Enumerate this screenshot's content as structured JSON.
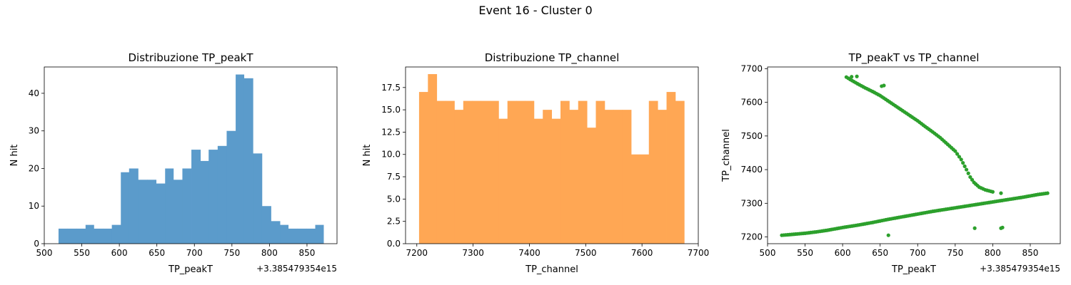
{
  "figure": {
    "suptitle": "Event 16 - Cluster 0"
  },
  "chart_data": [
    {
      "type": "bar",
      "title": "Distribuzione TP_peakT",
      "xlabel": "TP_peakT",
      "ylabel": "N hit",
      "offset_text": "+3.385479354e15",
      "color": "#5b9bcb",
      "xlim": [
        500,
        890
      ],
      "ylim": [
        0,
        47
      ],
      "xticks": [
        500,
        550,
        600,
        650,
        700,
        750,
        800,
        850
      ],
      "yticks": [
        0,
        10,
        20,
        30,
        40
      ],
      "bins": [
        {
          "x0": 519,
          "x1": 531,
          "y": 4
        },
        {
          "x0": 531,
          "x1": 543,
          "y": 4
        },
        {
          "x0": 543,
          "x1": 555,
          "y": 4
        },
        {
          "x0": 555,
          "x1": 566,
          "y": 5
        },
        {
          "x0": 566,
          "x1": 578,
          "y": 4
        },
        {
          "x0": 578,
          "x1": 590,
          "y": 4
        },
        {
          "x0": 590,
          "x1": 602,
          "y": 5
        },
        {
          "x0": 602,
          "x1": 613,
          "y": 19
        },
        {
          "x0": 613,
          "x1": 625,
          "y": 20
        },
        {
          "x0": 625,
          "x1": 637,
          "y": 17
        },
        {
          "x0": 637,
          "x1": 649,
          "y": 17
        },
        {
          "x0": 649,
          "x1": 661,
          "y": 16
        },
        {
          "x0": 661,
          "x1": 672,
          "y": 20
        },
        {
          "x0": 672,
          "x1": 684,
          "y": 17
        },
        {
          "x0": 684,
          "x1": 696,
          "y": 20
        },
        {
          "x0": 696,
          "x1": 708,
          "y": 25
        },
        {
          "x0": 708,
          "x1": 719,
          "y": 22
        },
        {
          "x0": 719,
          "x1": 731,
          "y": 25
        },
        {
          "x0": 731,
          "x1": 743,
          "y": 26
        },
        {
          "x0": 743,
          "x1": 755,
          "y": 30
        },
        {
          "x0": 755,
          "x1": 766,
          "y": 45
        },
        {
          "x0": 766,
          "x1": 778,
          "y": 44
        },
        {
          "x0": 778,
          "x1": 790,
          "y": 24
        },
        {
          "x0": 790,
          "x1": 802,
          "y": 10
        },
        {
          "x0": 802,
          "x1": 814,
          "y": 6
        },
        {
          "x0": 814,
          "x1": 825,
          "y": 5
        },
        {
          "x0": 825,
          "x1": 837,
          "y": 4
        },
        {
          "x0": 837,
          "x1": 849,
          "y": 4
        },
        {
          "x0": 849,
          "x1": 861,
          "y": 4
        },
        {
          "x0": 861,
          "x1": 872,
          "y": 5
        }
      ]
    },
    {
      "type": "bar",
      "title": "Distribuzione TP_channel",
      "xlabel": "TP_channel",
      "ylabel": "N hit",
      "color": "#ffa754",
      "xlim": [
        7180,
        7700
      ],
      "ylim": [
        0,
        19.8
      ],
      "xticks": [
        7200,
        7300,
        7400,
        7500,
        7600,
        7700
      ],
      "yticks": [
        0,
        2.5,
        5,
        7.5,
        10,
        12.5,
        15,
        17.5
      ],
      "ytick_labels": [
        "0.0",
        "2.5",
        "5.0",
        "7.5",
        "10.0",
        "12.5",
        "15.0",
        "17.5"
      ],
      "bin_start": 7204,
      "bin_width": 15.7,
      "values": [
        17,
        19,
        16,
        16,
        15,
        16,
        16,
        16,
        16,
        14,
        16,
        16,
        16,
        14,
        15,
        14,
        16,
        15,
        16,
        13,
        16,
        15,
        15,
        15,
        10,
        10,
        16,
        15,
        17,
        16
      ]
    },
    {
      "type": "scatter",
      "title": "TP_peakT vs TP_channel",
      "xlabel": "TP_peakT",
      "ylabel": "TP_channel",
      "offset_text": "+3.385479354e15",
      "color": "#2ca02c",
      "xlim": [
        500,
        890
      ],
      "ylim": [
        7180,
        7705
      ],
      "xticks": [
        500,
        550,
        600,
        650,
        700,
        750,
        800,
        850
      ],
      "yticks": [
        7200,
        7300,
        7400,
        7500,
        7600,
        7700
      ],
      "series": [
        {
          "points": [
            [
              519,
              7205
            ],
            [
              535,
              7208
            ],
            [
              550,
              7211
            ],
            [
              565,
              7215
            ],
            [
              580,
              7220
            ],
            [
              600,
              7228
            ],
            [
              620,
              7235
            ],
            [
              640,
              7243
            ],
            [
              660,
              7252
            ],
            [
              680,
              7260
            ],
            [
              700,
              7268
            ],
            [
              720,
              7276
            ],
            [
              740,
              7283
            ],
            [
              760,
              7290
            ],
            [
              780,
              7297
            ],
            [
              800,
              7304
            ],
            [
              820,
              7311
            ],
            [
              840,
              7318
            ],
            [
              860,
              7326
            ],
            [
              873,
              7330
            ]
          ]
        },
        {
          "points": [
            [
              605,
              7675
            ],
            [
              610,
              7668
            ],
            [
              620,
              7655
            ],
            [
              630,
              7643
            ],
            [
              640,
              7632
            ],
            [
              650,
              7620
            ],
            [
              660,
              7605
            ],
            [
              670,
              7590
            ],
            [
              680,
              7575
            ],
            [
              690,
              7560
            ],
            [
              700,
              7545
            ],
            [
              710,
              7528
            ],
            [
              720,
              7512
            ],
            [
              730,
              7495
            ],
            [
              740,
              7475
            ],
            [
              750,
              7455
            ],
            [
              758,
              7430
            ],
            [
              765,
              7400
            ],
            [
              770,
              7378
            ],
            [
              775,
              7362
            ],
            [
              782,
              7348
            ],
            [
              790,
              7340
            ],
            [
              800,
              7334
            ]
          ]
        },
        {
          "points": [
            [
              612,
              7676
            ],
            [
              619,
              7677
            ],
            [
              652,
              7648
            ],
            [
              655,
              7650
            ],
            [
              661,
              7205
            ],
            [
              776,
              7226
            ],
            [
              811,
              7330
            ],
            [
              811,
              7226
            ],
            [
              813,
              7228
            ]
          ]
        }
      ]
    }
  ]
}
